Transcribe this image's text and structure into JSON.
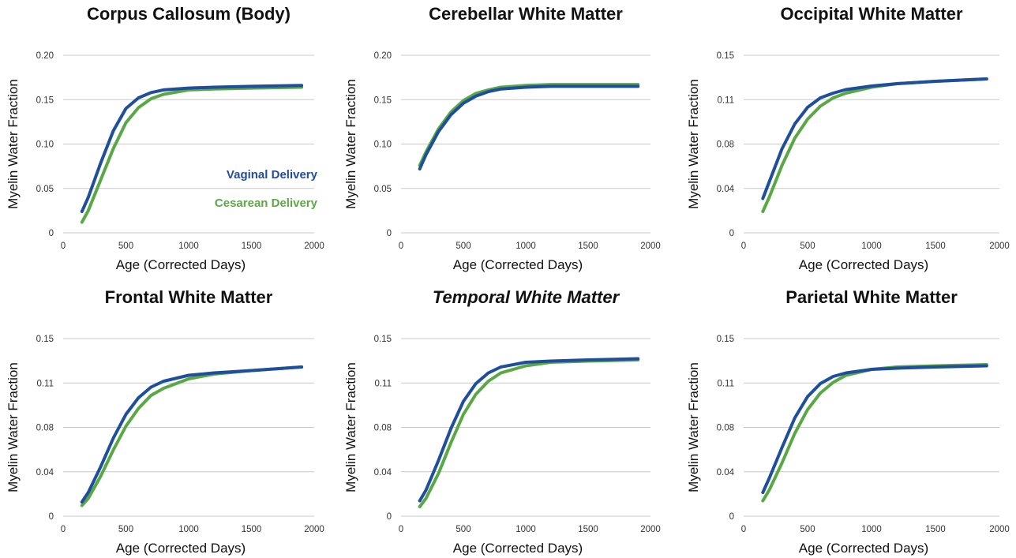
{
  "chart_data": [
    {
      "type": "line",
      "title": "Corpus Callosum (Body)",
      "title_italic": false,
      "xlabel": "Age (Corrected Days)",
      "ylabel": "Myelin Water Fraction",
      "xlim": [
        0,
        2000
      ],
      "ylim": [
        0,
        0.2
      ],
      "x_ticks": [
        0,
        500,
        1000,
        1500,
        2000
      ],
      "x_tick_labels": [
        "0",
        "500",
        "1000",
        "1500",
        "2000"
      ],
      "y_ticks": [
        0,
        0.05,
        0.1,
        0.15,
        0.2
      ],
      "y_tick_labels": [
        "0",
        "0.05",
        "0.10",
        "0.15",
        "0.20"
      ],
      "grid": true,
      "legend": {
        "placement": "lower-right",
        "entries": [
          {
            "label": "Vaginal Delivery",
            "color": "#1f4e9c"
          },
          {
            "label": "Cesarean Delivery",
            "color": "#5aa845"
          }
        ]
      },
      "series": [
        {
          "name": "Vaginal Delivery",
          "color": "#1f4e9c",
          "x": [
            150,
            200,
            300,
            400,
            500,
            600,
            700,
            800,
            1000,
            1200,
            1500,
            1900
          ],
          "y": [
            0.024,
            0.04,
            0.079,
            0.115,
            0.14,
            0.152,
            0.158,
            0.161,
            0.163,
            0.164,
            0.165,
            0.166
          ]
        },
        {
          "name": "Cesarean Delivery",
          "color": "#5aa845",
          "x": [
            150,
            200,
            300,
            400,
            500,
            600,
            700,
            800,
            1000,
            1200,
            1500,
            1900
          ],
          "y": [
            0.012,
            0.025,
            0.06,
            0.095,
            0.124,
            0.141,
            0.151,
            0.156,
            0.161,
            0.162,
            0.163,
            0.164
          ]
        }
      ]
    },
    {
      "type": "line",
      "title": "Cerebellar White Matter",
      "title_italic": false,
      "xlabel": "Age (Corrected Days)",
      "ylabel": "Myelin Water Fraction",
      "xlim": [
        0,
        2000
      ],
      "ylim": [
        0,
        0.2
      ],
      "x_ticks": [
        0,
        500,
        1000,
        1500,
        2000
      ],
      "x_tick_labels": [
        "0",
        "500",
        "1000",
        "1500",
        "2000"
      ],
      "y_ticks": [
        0,
        0.05,
        0.1,
        0.15,
        0.2
      ],
      "y_tick_labels": [
        "0",
        "0.05",
        "0.10",
        "0.15",
        "0.20"
      ],
      "grid": true,
      "series": [
        {
          "name": "Vaginal Delivery",
          "color": "#1f4e9c",
          "x": [
            150,
            200,
            300,
            400,
            500,
            600,
            700,
            800,
            1000,
            1200,
            1500,
            1900
          ],
          "y": [
            0.072,
            0.088,
            0.114,
            0.133,
            0.146,
            0.154,
            0.159,
            0.162,
            0.164,
            0.165,
            0.165,
            0.165
          ]
        },
        {
          "name": "Cesarean Delivery",
          "color": "#5aa845",
          "x": [
            150,
            200,
            300,
            400,
            500,
            600,
            700,
            800,
            1000,
            1200,
            1500,
            1900
          ],
          "y": [
            0.076,
            0.091,
            0.117,
            0.136,
            0.149,
            0.157,
            0.161,
            0.164,
            0.166,
            0.167,
            0.167,
            0.167
          ]
        }
      ]
    },
    {
      "type": "line",
      "title": "Occipital White Matter",
      "title_italic": false,
      "xlabel": "Age (Corrected Days)",
      "ylabel": "Myelin Water Fraction",
      "xlim": [
        0,
        2000
      ],
      "ylim": [
        0,
        0.15
      ],
      "x_ticks": [
        0,
        500,
        1000,
        1500,
        2000
      ],
      "x_tick_labels": [
        "0",
        "500",
        "1000",
        "1500",
        "2000"
      ],
      "y_ticks": [
        0,
        0.0375,
        0.075,
        0.1125,
        0.15
      ],
      "y_tick_labels": [
        "0",
        "0.04",
        "0.08",
        "0.11",
        "0.15"
      ],
      "grid": true,
      "series": [
        {
          "name": "Vaginal Delivery",
          "color": "#1f4e9c",
          "x": [
            150,
            200,
            300,
            400,
            500,
            600,
            700,
            800,
            1000,
            1200,
            1500,
            1900
          ],
          "y": [
            0.029,
            0.043,
            0.071,
            0.092,
            0.106,
            0.114,
            0.118,
            0.121,
            0.124,
            0.126,
            0.128,
            0.13
          ]
        },
        {
          "name": "Cesarean Delivery",
          "color": "#5aa845",
          "x": [
            150,
            200,
            300,
            400,
            500,
            600,
            700,
            800,
            1000,
            1200,
            1500,
            1900
          ],
          "y": [
            0.018,
            0.03,
            0.057,
            0.08,
            0.096,
            0.107,
            0.114,
            0.118,
            0.123,
            0.126,
            0.128,
            0.13
          ]
        }
      ]
    },
    {
      "type": "line",
      "title": "Frontal White Matter",
      "title_italic": false,
      "xlabel": "Age (Corrected Days)",
      "ylabel": "Myelin Water Fraction",
      "xlim": [
        0,
        2000
      ],
      "ylim": [
        0,
        0.15
      ],
      "x_ticks": [
        0,
        500,
        1000,
        1500,
        2000
      ],
      "x_tick_labels": [
        "0",
        "500",
        "1000",
        "1500",
        "2000"
      ],
      "y_ticks": [
        0,
        0.0375,
        0.075,
        0.1125,
        0.15
      ],
      "y_tick_labels": [
        "0",
        "0.04",
        "0.08",
        "0.11",
        "0.15"
      ],
      "grid": true,
      "series": [
        {
          "name": "Vaginal Delivery",
          "color": "#1f4e9c",
          "x": [
            150,
            200,
            300,
            400,
            500,
            600,
            700,
            800,
            1000,
            1200,
            1500,
            1900
          ],
          "y": [
            0.012,
            0.02,
            0.042,
            0.066,
            0.086,
            0.1,
            0.109,
            0.114,
            0.119,
            0.121,
            0.123,
            0.126
          ]
        },
        {
          "name": "Cesarean Delivery",
          "color": "#5aa845",
          "x": [
            150,
            200,
            300,
            400,
            500,
            600,
            700,
            800,
            1000,
            1200,
            1500,
            1900
          ],
          "y": [
            0.009,
            0.015,
            0.034,
            0.056,
            0.076,
            0.091,
            0.102,
            0.108,
            0.116,
            0.12,
            0.123,
            0.126
          ]
        }
      ]
    },
    {
      "type": "line",
      "title": "Temporal White Matter",
      "title_italic": true,
      "xlabel": "Age (Corrected Days)",
      "ylabel": "Myelin Water Fraction",
      "xlim": [
        0,
        2000
      ],
      "ylim": [
        0,
        0.15
      ],
      "x_ticks": [
        0,
        500,
        1000,
        1500,
        2000
      ],
      "x_tick_labels": [
        "0",
        "500",
        "1000",
        "1500",
        "2000"
      ],
      "y_ticks": [
        0,
        0.0375,
        0.075,
        0.1125,
        0.15
      ],
      "y_tick_labels": [
        "0",
        "0.04",
        "0.08",
        "0.11",
        "0.15"
      ],
      "grid": true,
      "series": [
        {
          "name": "Vaginal Delivery",
          "color": "#1f4e9c",
          "x": [
            150,
            200,
            300,
            400,
            500,
            600,
            700,
            800,
            1000,
            1200,
            1500,
            1900
          ],
          "y": [
            0.013,
            0.022,
            0.047,
            0.074,
            0.097,
            0.112,
            0.121,
            0.126,
            0.13,
            0.131,
            0.132,
            0.133
          ]
        },
        {
          "name": "Cesarean Delivery",
          "color": "#5aa845",
          "x": [
            150,
            200,
            300,
            400,
            500,
            600,
            700,
            800,
            1000,
            1200,
            1500,
            1900
          ],
          "y": [
            0.008,
            0.015,
            0.036,
            0.062,
            0.086,
            0.103,
            0.114,
            0.121,
            0.127,
            0.13,
            0.131,
            0.132
          ]
        }
      ]
    },
    {
      "type": "line",
      "title": "Parietal White Matter",
      "title_italic": false,
      "xlabel": "Age (Corrected Days)",
      "ylabel": "Myelin Water Fraction",
      "xlim": [
        0,
        2000
      ],
      "ylim": [
        0,
        0.15
      ],
      "x_ticks": [
        0,
        500,
        1000,
        1500,
        2000
      ],
      "x_tick_labels": [
        "0",
        "500",
        "1000",
        "1500",
        "2000"
      ],
      "y_ticks": [
        0,
        0.0375,
        0.075,
        0.1125,
        0.15
      ],
      "y_tick_labels": [
        "0",
        "0.04",
        "0.08",
        "0.11",
        "0.15"
      ],
      "grid": true,
      "series": [
        {
          "name": "Vaginal Delivery",
          "color": "#1f4e9c",
          "x": [
            150,
            200,
            300,
            400,
            500,
            600,
            700,
            800,
            1000,
            1200,
            1500,
            1900
          ],
          "y": [
            0.02,
            0.032,
            0.058,
            0.083,
            0.101,
            0.112,
            0.118,
            0.121,
            0.124,
            0.125,
            0.126,
            0.127
          ]
        },
        {
          "name": "Cesarean Delivery",
          "color": "#5aa845",
          "x": [
            150,
            200,
            300,
            400,
            500,
            600,
            700,
            800,
            1000,
            1200,
            1500,
            1900
          ],
          "y": [
            0.013,
            0.022,
            0.045,
            0.07,
            0.09,
            0.104,
            0.113,
            0.119,
            0.124,
            0.126,
            0.127,
            0.128
          ]
        }
      ]
    }
  ]
}
